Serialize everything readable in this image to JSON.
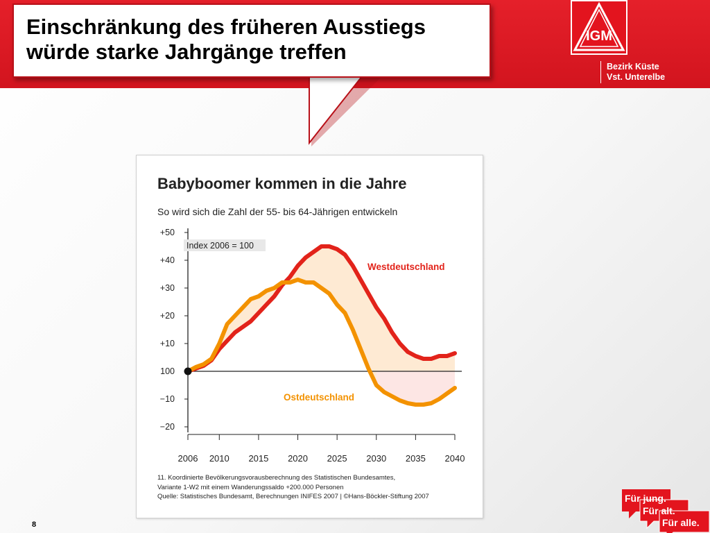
{
  "header": {
    "title": "Einschränkung des früheren Ausstiegs\nwürde starke Jahrgänge treffen",
    "org_line1": "Bezirk Küste",
    "org_line2": "Vst. Unterelbe",
    "logo_name": "IG Metall logo",
    "logo_letters": "IGM",
    "brand_color": "#e3141e"
  },
  "slide_number": "8",
  "slogan": {
    "line1": "Für jung.",
    "line2": "Für alt.",
    "line3": "Für alle."
  },
  "chart_data": {
    "type": "line",
    "title": "Babyboomer kommen in die Jahre",
    "subtitle": "So wird sich die Zahl der 55- bis 64-Jährigen entwickeln",
    "index_note": "Index 2006 = 100",
    "ylim": [
      -22,
      50
    ],
    "xlim": [
      2006,
      2040
    ],
    "x_ticks": [
      2006,
      2010,
      2015,
      2020,
      2025,
      2030,
      2035,
      2040
    ],
    "x_tick_labels": [
      "2006",
      "2010",
      "2015",
      "2020",
      "2025",
      "2030",
      "2035",
      "2040"
    ],
    "y_ticks": [
      50,
      40,
      30,
      20,
      10,
      0,
      -10,
      -20
    ],
    "y_tick_labels": [
      "+50",
      "+40",
      "+30",
      "+20",
      "+10",
      "100",
      "−10",
      "−20"
    ],
    "series": [
      {
        "name": "Westdeutschland",
        "color": "#e2231a",
        "x": [
          2006,
          2007,
          2008,
          2009,
          2010,
          2011,
          2012,
          2013,
          2014,
          2015,
          2016,
          2017,
          2018,
          2019,
          2020,
          2021,
          2022,
          2023,
          2024,
          2025,
          2026,
          2027,
          2028,
          2029,
          2030,
          2031,
          2032,
          2033,
          2034,
          2035,
          2036,
          2037,
          2038,
          2039,
          2040
        ],
        "values": [
          0,
          1,
          2,
          4,
          8,
          11,
          14,
          16,
          18,
          21,
          24,
          27,
          31,
          34,
          38,
          41,
          43,
          45,
          45,
          44,
          42,
          38,
          33,
          28,
          23,
          19,
          14,
          10,
          7,
          5.5,
          4.5,
          4.5,
          5.5,
          5.5,
          6.5
        ]
      },
      {
        "name": "Ostdeutschland",
        "color": "#f39200",
        "x": [
          2006,
          2007,
          2008,
          2009,
          2010,
          2011,
          2012,
          2013,
          2014,
          2015,
          2016,
          2017,
          2018,
          2019,
          2020,
          2021,
          2022,
          2023,
          2024,
          2025,
          2026,
          2027,
          2028,
          2029,
          2030,
          2031,
          2032,
          2033,
          2034,
          2035,
          2036,
          2037,
          2038,
          2039,
          2040
        ],
        "values": [
          0,
          1.5,
          2.5,
          4.5,
          10,
          17,
          20,
          23,
          26,
          27,
          29,
          30,
          32,
          32,
          33,
          32,
          32,
          30,
          28,
          24,
          21,
          15,
          8,
          1,
          -5,
          -7.5,
          -9,
          -10.5,
          -11.5,
          -12,
          -12,
          -11.5,
          -10,
          -8,
          -6
        ]
      }
    ],
    "source_lines": [
      "11. Koordinierte Bevölkerungsvorausberechnung des Statistischen Bundesamtes,",
      "Variante 1-W2 mit einem Wanderungssaldo +200.000 Personen",
      "Quelle: Statistisches Bundesamt, Berechnungen INIFES 2007 | ©Hans-Böckler-Stiftung 2007"
    ],
    "grid": false
  }
}
